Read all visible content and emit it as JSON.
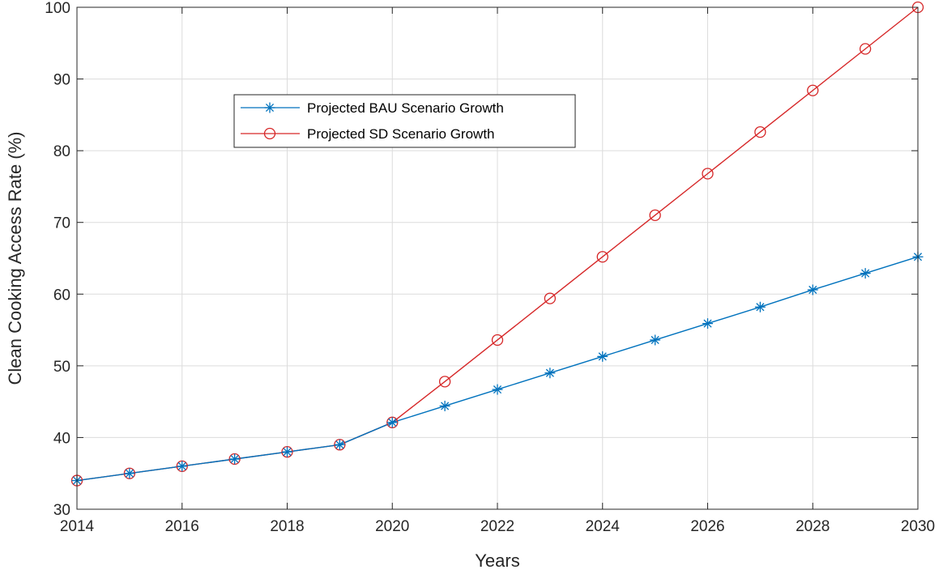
{
  "chart_data": {
    "type": "line",
    "xlabel": "Years",
    "ylabel": "Clean Cooking Access Rate (%)",
    "xlim": [
      2014,
      2030
    ],
    "ylim": [
      30,
      100
    ],
    "xticks": [
      2014,
      2016,
      2018,
      2020,
      2022,
      2024,
      2026,
      2028,
      2030
    ],
    "yticks": [
      30,
      40,
      50,
      60,
      70,
      80,
      90,
      100
    ],
    "grid": true,
    "legend_position": "upper-left inside",
    "x": [
      2014,
      2015,
      2016,
      2017,
      2018,
      2019,
      2020,
      2021,
      2022,
      2023,
      2024,
      2025,
      2026,
      2027,
      2028,
      2029,
      2030
    ],
    "series": [
      {
        "name": "Projected BAU Scenario Growth",
        "color": "#0072BD",
        "marker": "asterisk",
        "values": [
          34,
          35,
          36,
          37,
          38,
          39,
          42.1,
          44.4,
          46.7,
          49.0,
          51.3,
          53.6,
          55.9,
          58.2,
          60.6,
          62.9,
          65.2
        ]
      },
      {
        "name": "Projected SD Scenario Growth",
        "color": "#D62728",
        "marker": "circle",
        "values": [
          34,
          35,
          36,
          37,
          38,
          39,
          42.1,
          47.8,
          53.6,
          59.4,
          65.2,
          71.0,
          76.8,
          82.6,
          88.4,
          94.2,
          100
        ]
      }
    ]
  }
}
